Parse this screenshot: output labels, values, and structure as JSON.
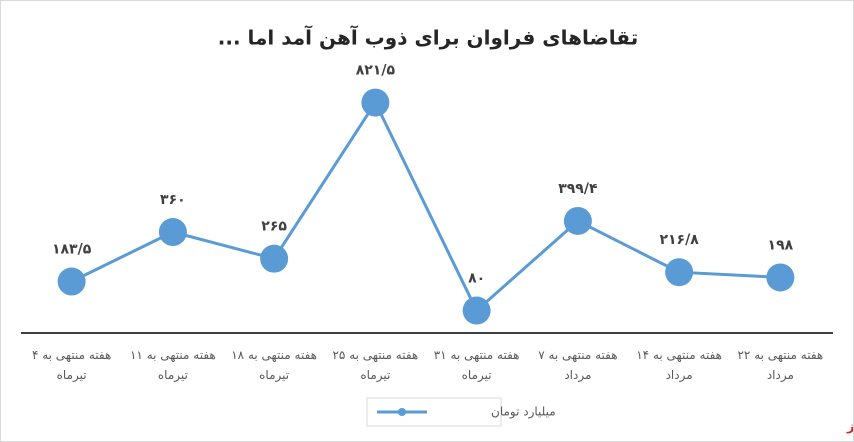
{
  "chart_data": {
    "type": "line",
    "title": "تقاضاهای فراوان برای ذوب آهن آمد اما ...",
    "categories": [
      "هفته منتهی به ۴ تیرماه",
      "هفته منتهی به ۱۱ تیرماه",
      "هفته منتهی به ۱۸ تیرماه",
      "هفته منتهی به ۲۵ تیرماه",
      "هفته منتهی به ۳۱ تیرماه",
      "هفته منتهی به ۷ مرداد",
      "هفته منتهی به ۱۴ مرداد",
      "هفته منتهی به ۲۲ مرداد"
    ],
    "series": [
      {
        "name": "میلیارد تومان",
        "color": "#5b9bd5",
        "values": [
          183.5,
          360,
          265,
          821.5,
          80,
          399.4,
          216.8,
          198
        ],
        "value_labels": [
          "۱۸۳/۵",
          "۳۶۰",
          "۲۶۵",
          "۸۲۱/۵",
          "۸۰",
          "۳۹۹/۴",
          "۲۱۶/۸",
          "۱۹۸"
        ]
      }
    ],
    "ylim": [
      0,
      1000
    ],
    "legend": "bottom",
    "watermark": "بورس نیوز"
  }
}
